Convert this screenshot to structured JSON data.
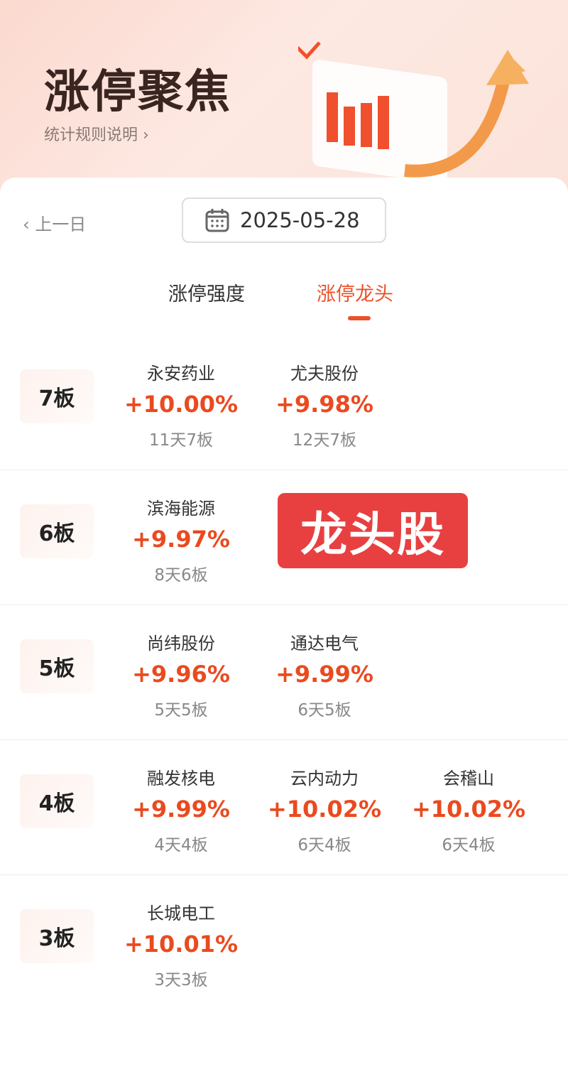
{
  "banner": {
    "title": "涨停聚焦",
    "rules_link": "统计规则说明 ›"
  },
  "nav": {
    "prev_day": "‹ 上一日",
    "date": "2025-05-28"
  },
  "tabs": [
    {
      "label": "涨停强度",
      "active": false
    },
    {
      "label": "涨停龙头",
      "active": true
    }
  ],
  "overlay_badge": "龙头股",
  "rows": [
    {
      "label": "7板",
      "stocks": [
        {
          "name": "永安药业",
          "pct": "+10.00%",
          "sub": "11天7板"
        },
        {
          "name": "尤夫股份",
          "pct": "+9.98%",
          "sub": "12天7板"
        }
      ]
    },
    {
      "label": "6板",
      "stocks": [
        {
          "name": "滨海能源",
          "pct": "+9.97%",
          "sub": "8天6板"
        }
      ]
    },
    {
      "label": "5板",
      "stocks": [
        {
          "name": "尚纬股份",
          "pct": "+9.96%",
          "sub": "5天5板"
        },
        {
          "name": "通达电气",
          "pct": "+9.99%",
          "sub": "6天5板"
        }
      ]
    },
    {
      "label": "4板",
      "stocks": [
        {
          "name": "融发核电",
          "pct": "+9.99%",
          "sub": "4天4板"
        },
        {
          "name": "云内动力",
          "pct": "+10.02%",
          "sub": "6天4板"
        },
        {
          "name": "会稽山",
          "pct": "+10.02%",
          "sub": "6天4板"
        }
      ]
    },
    {
      "label": "3板",
      "stocks": [
        {
          "name": "长城电工",
          "pct": "+10.01%",
          "sub": "3天3板"
        }
      ]
    }
  ],
  "colors": {
    "accent": "#e9522a",
    "badge": "#e84040"
  }
}
